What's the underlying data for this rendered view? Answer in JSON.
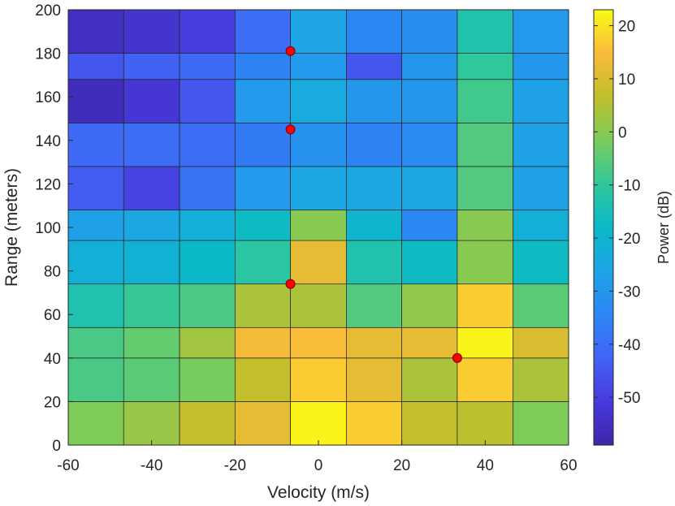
{
  "chart_data": {
    "type": "heatmap",
    "title": "",
    "xlabel": "Velocity (m/s)",
    "ylabel": "Range (meters)",
    "colorbar_label": "Power (dB)",
    "xlim": [
      -60,
      60
    ],
    "ylim": [
      0,
      200
    ],
    "x_ticks": [
      -60,
      -40,
      -20,
      0,
      20,
      40,
      60
    ],
    "y_ticks": [
      0,
      20,
      40,
      60,
      80,
      100,
      120,
      140,
      160,
      180,
      200
    ],
    "colorbar_ticks": [
      20,
      10,
      0,
      -10,
      -20,
      -30,
      -40,
      -50
    ],
    "clim": [
      -59,
      23
    ],
    "x_edges": [
      -60,
      -46.7,
      -33.3,
      -20,
      -6.7,
      6.7,
      20,
      33.3,
      46.7,
      60
    ],
    "y_edges": [
      0,
      20,
      40,
      54,
      74,
      94,
      108,
      128,
      148,
      168,
      180,
      200
    ],
    "grid": true,
    "colormap": "parula",
    "power_db": [
      [
        -1,
        2,
        7,
        12,
        22,
        17,
        7,
        6,
        -1
      ],
      [
        -7,
        -5,
        -2,
        7,
        17,
        12,
        4,
        17,
        4
      ],
      [
        -7,
        -4,
        3,
        14,
        15,
        12,
        12,
        22,
        10
      ],
      [
        -13,
        -9,
        -7,
        4,
        4,
        -6,
        1,
        17,
        -5
      ],
      [
        -22,
        -21,
        -18,
        -11,
        12,
        -13,
        -17,
        0,
        -17
      ],
      [
        -27,
        -25,
        -22,
        -17,
        0,
        -20,
        -34,
        0,
        -22
      ],
      [
        -44,
        -49,
        -39,
        -29,
        -25,
        -25,
        -25,
        -6,
        -27
      ],
      [
        -41,
        -40,
        -40,
        -37,
        -31,
        -35,
        -33,
        -6,
        -27
      ],
      [
        -56,
        -52,
        -45,
        -29,
        -24,
        -30,
        -30,
        -8,
        -27
      ],
      [
        -45,
        -43,
        -41,
        -35,
        -29,
        -45,
        -30,
        -10,
        -30
      ],
      [
        -55,
        -53,
        -50,
        -40,
        -26,
        -34,
        -32,
        -13,
        -29
      ]
    ],
    "points": [
      {
        "x": -6.7,
        "y": 181
      },
      {
        "x": -6.7,
        "y": 145
      },
      {
        "x": -6.7,
        "y": 74
      },
      {
        "x": 33.3,
        "y": 40
      }
    ],
    "colors": {
      "marker_fill": "#ff0000",
      "marker_edge": "#7a0000",
      "cell_edge": "#222222",
      "axis": "#262626"
    }
  }
}
